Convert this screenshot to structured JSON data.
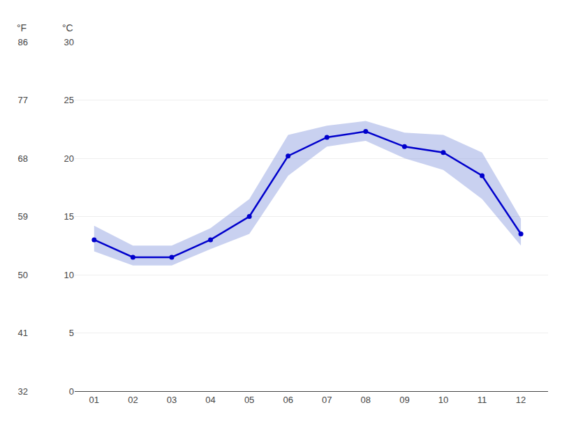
{
  "chart_data": {
    "type": "line",
    "x": [
      1,
      2,
      3,
      4,
      5,
      6,
      7,
      8,
      9,
      10,
      11,
      12
    ],
    "xlim": [
      0.5,
      12.7
    ],
    "xticks": [
      {
        "value": 1,
        "label": "01"
      },
      {
        "value": 2,
        "label": "02"
      },
      {
        "value": 3,
        "label": "03"
      },
      {
        "value": 4,
        "label": "04"
      },
      {
        "value": 5,
        "label": "05"
      },
      {
        "value": 6,
        "label": "06"
      },
      {
        "value": 7,
        "label": "07"
      },
      {
        "value": 8,
        "label": "08"
      },
      {
        "value": 9,
        "label": "09"
      },
      {
        "value": 10,
        "label": "10"
      },
      {
        "value": 11,
        "label": "11"
      },
      {
        "value": 12,
        "label": "12"
      }
    ],
    "series": [
      {
        "type": "band",
        "lower": [
          12.0,
          10.8,
          10.8,
          12.2,
          13.5,
          18.5,
          21.0,
          21.5,
          20.0,
          19.0,
          16.5,
          12.5
        ],
        "upper": [
          14.2,
          12.5,
          12.5,
          14.0,
          16.5,
          22.0,
          22.8,
          23.2,
          22.2,
          22.0,
          20.5,
          14.8
        ],
        "color": "#8899dd"
      },
      {
        "type": "line",
        "values": [
          13.0,
          11.5,
          11.5,
          13.0,
          15.0,
          20.2,
          21.8,
          22.3,
          21.0,
          20.5,
          18.5,
          13.5
        ],
        "color": "#0000cc",
        "marker": "circle"
      }
    ],
    "ylabel": "°C",
    "ylim": [
      0,
      30
    ],
    "yticks": [
      0,
      5,
      10,
      15,
      20,
      25,
      30
    ],
    "y2label": "°F",
    "y2lim": [
      32,
      86
    ],
    "y2ticks": [
      32,
      41,
      50,
      59,
      68,
      77,
      86
    ],
    "grid": true
  }
}
